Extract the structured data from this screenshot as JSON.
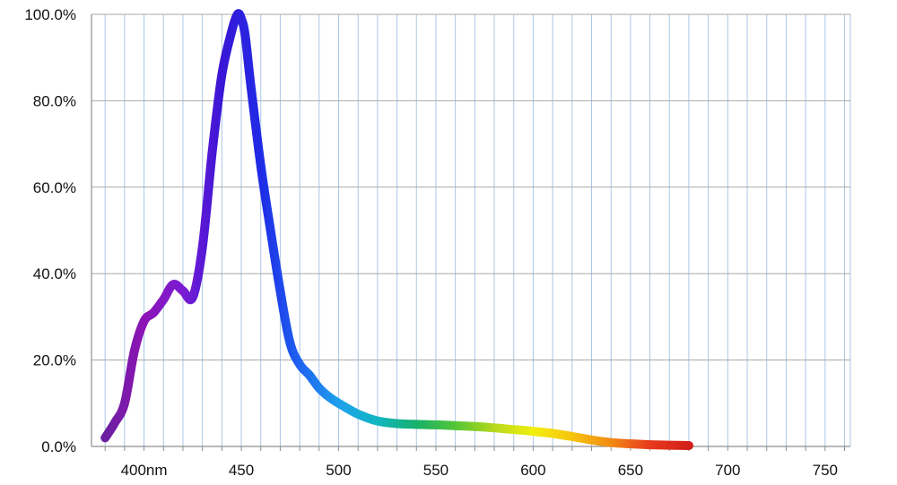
{
  "chart_data": {
    "type": "line",
    "title": "",
    "xlabel": "",
    "ylabel": "",
    "xlim": [
      373,
      763
    ],
    "ylim": [
      0,
      100
    ],
    "grid": true,
    "legend": "none",
    "x_tick_values": [
      400,
      450,
      500,
      550,
      600,
      650,
      700,
      750
    ],
    "x_tick_labels": [
      "400nm",
      "450",
      "500",
      "550",
      "600",
      "650",
      "700",
      "750"
    ],
    "y_tick_values": [
      0,
      20,
      40,
      60,
      80,
      100
    ],
    "y_tick_labels": [
      "0.0%",
      "20.0%",
      "40.0%",
      "60.0%",
      "80.0%",
      "100.0%"
    ],
    "series": [
      {
        "x": [
          380,
          385,
          390,
          395,
          400,
          405,
          410,
          415,
          420,
          425,
          430,
          435,
          440,
          445,
          448,
          450,
          452,
          455,
          460,
          465,
          470,
          475,
          480,
          485,
          490,
          495,
          500,
          510,
          520,
          530,
          540,
          550,
          560,
          570,
          580,
          590,
          600,
          610,
          620,
          630,
          640,
          650,
          660,
          670,
          680
        ],
        "y": [
          2,
          5.5,
          10,
          22,
          29,
          31,
          34,
          37.5,
          36,
          34.5,
          46,
          68,
          86,
          96,
          100,
          99,
          95,
          83,
          65,
          50,
          36,
          24,
          19,
          16.5,
          13.5,
          11.5,
          10,
          7.5,
          5.9,
          5.3,
          5.1,
          5.0,
          4.8,
          4.6,
          4.3,
          3.9,
          3.5,
          3.0,
          2.3,
          1.5,
          0.9,
          0.6,
          0.4,
          0.3,
          0.2
        ]
      }
    ]
  },
  "colors": {
    "grid_major": "#a8a8a8",
    "grid_minor": "#a9c7e6",
    "axis": "#8f8f8f",
    "spectrum_stops": [
      "#6b1fa0",
      "#8d14b5",
      "#7a1bd4",
      "#3a16d6",
      "#1f2be6",
      "#1e63f0",
      "#1ea0ec",
      "#12b6c2",
      "#17b06a",
      "#53c637",
      "#b7d81d",
      "#f2ef0c",
      "#f6c40f",
      "#f28a14",
      "#e8391c",
      "#d21f1a"
    ]
  }
}
